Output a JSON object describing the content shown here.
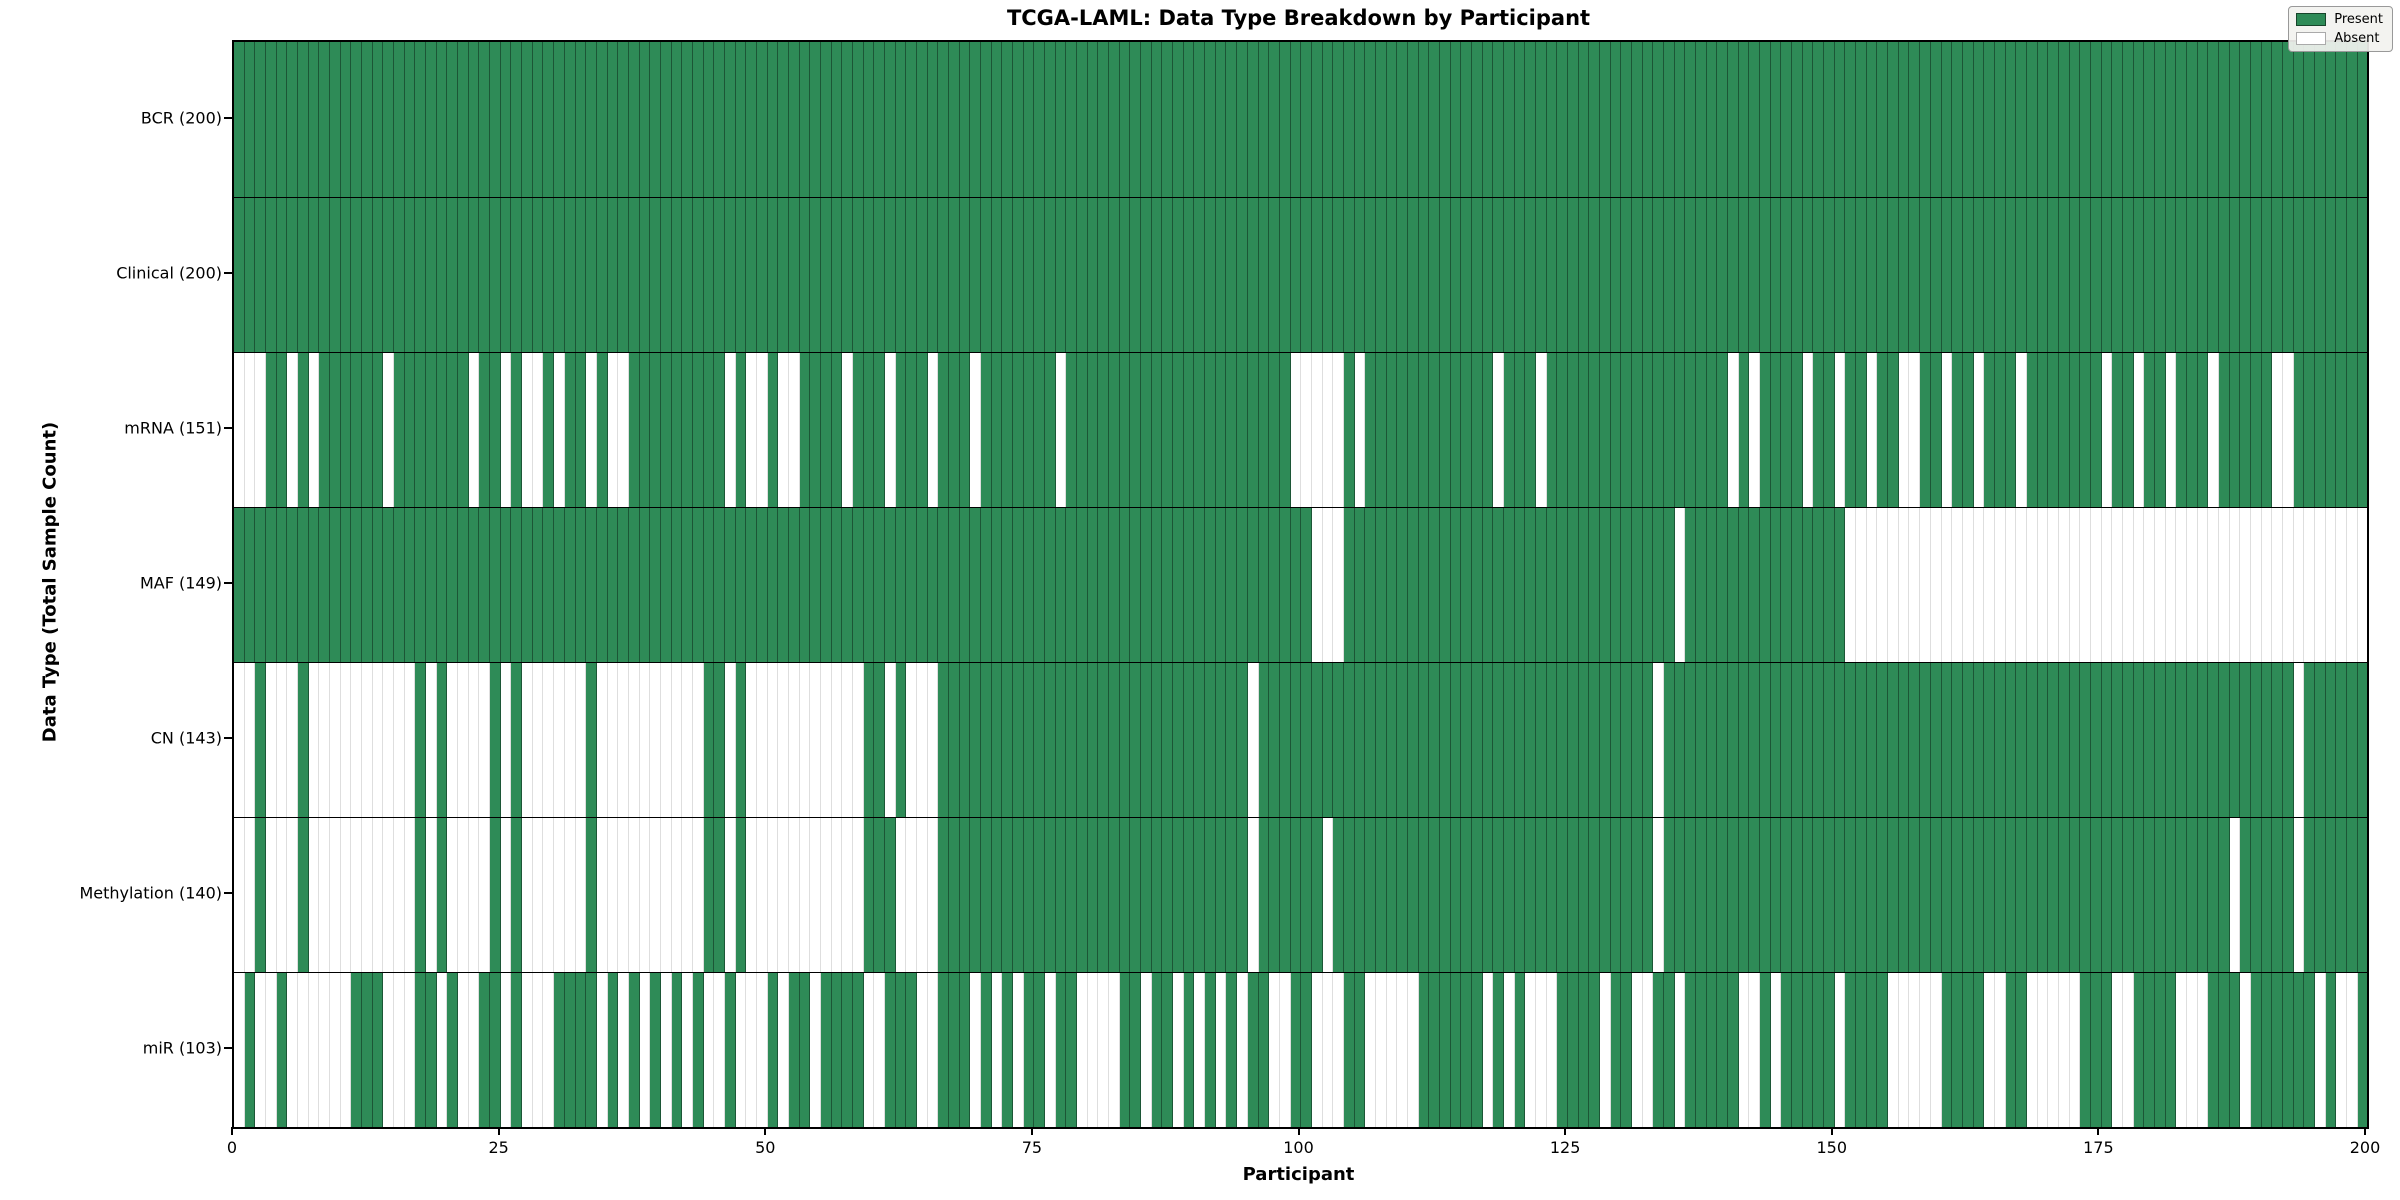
{
  "title": "TCGA-LAML: Data Type Breakdown by Participant",
  "accent_color": "#2e8b57",
  "absent_color": "#ffffff",
  "legend": {
    "present_label": "Present",
    "absent_label": "Absent"
  },
  "chart_data": {
    "type": "heatmap",
    "title": "TCGA-LAML: Data Type Breakdown by Participant",
    "xlabel": "Participant",
    "ylabel": "Data Type (Total Sample Count)",
    "x_range": [
      0,
      200
    ],
    "x_ticks": [
      "0",
      "25",
      "50",
      "75",
      "100",
      "125",
      "150",
      "175",
      "200"
    ],
    "grid": true,
    "legend_position": "upper right",
    "legend_entries": [
      {
        "label": "Present",
        "color": "#2e8b57"
      },
      {
        "label": "Absent",
        "color": "#ffffff"
      }
    ],
    "value_encoding": {
      "1": "present",
      "0": "absent"
    },
    "rows": [
      {
        "label": "BCR (200)",
        "total": 200,
        "pattern": "11111111111111111111111111111111111111111111111111111111111111111111111111111111111111111111111111111111111111111111111111111111111111111111111111111111111111111111111111111111111111111111111111111111"
      },
      {
        "label": "Clinical (200)",
        "total": 200,
        "pattern": "11111111111111111111111111111111111111111111111111111111111111111111111111111111111111111111111111111111111111111111111111111111111111111111111111111111111111111111111111111111111111111111111111111111"
      },
      {
        "label": "mRNA (151)",
        "total": 151,
        "pattern": "00011010111111011111110110100101101001111111110100100111101110111011101111111011111111111111111111100000101111111111110111011111111111111111010111101101101100110110111011111110110110111011111001111111"
      },
      {
        "label": "MAF (149)",
        "total": 149,
        "pattern": "11111111111111111111111111111111111111111111111111111111111111111111111111111111111111111111111111111000111111111111111111111111111111101111111111111110000000000000000000000000000000000000000000000000"
      },
      {
        "label": "CN (143)",
        "total": 143,
        "pattern": "00100010000000000101000010100000010000000000110100000000000110100011111111111111111111111111111011111111111111111111111111111111111110111111111111111111111111111111111111111111111111111111111110111111"
      },
      {
        "label": "Methylation (140)",
        "total": 140,
        "pattern": "00100010000000000101000010100000010000000000110100000000000111000011111111111111111111111111111011111101111111111111111111111111111110111111111111111111111111111111111111111111111111111110111110111111"
      },
      {
        "label": "miR (103)",
        "total": 103,
        "pattern": "01001000000111000110100110100011110101010101001000101101111001110011101010110110000110110101010110011000110000011111101010001111011001101111100101111101111000001111001100000111001111000111011111101001"
      }
    ]
  }
}
